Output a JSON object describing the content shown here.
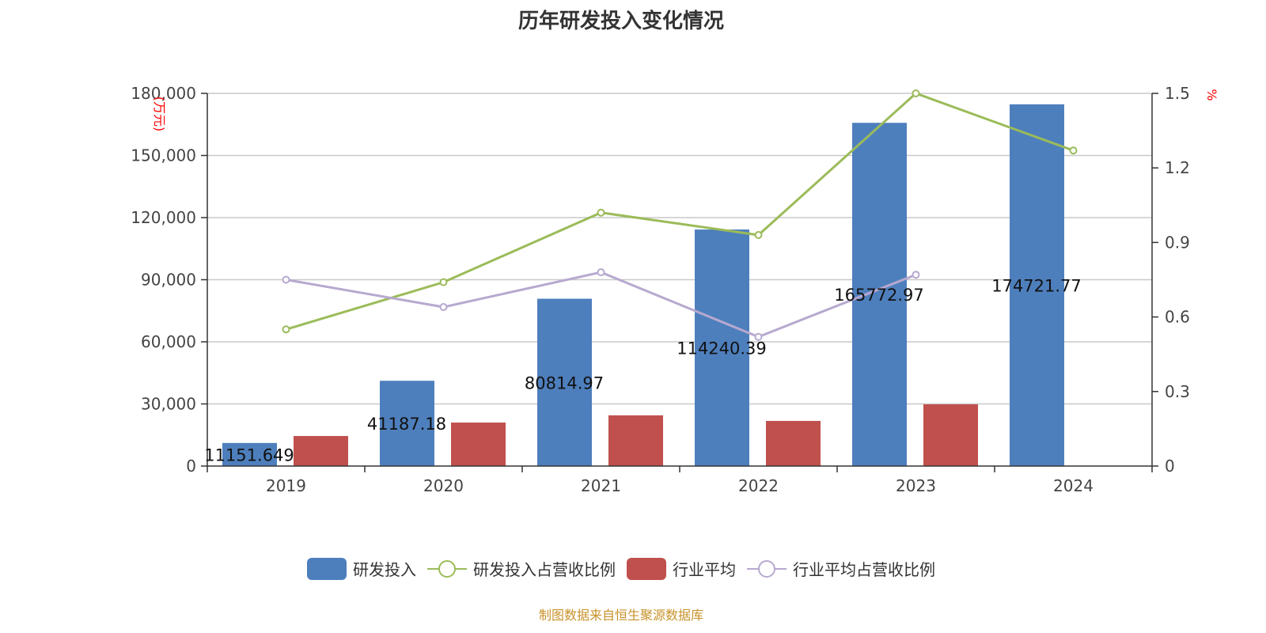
{
  "chart_data": {
    "type": "bar",
    "title": "历年研发投入变化情况",
    "categories": [
      "2019",
      "2020",
      "2021",
      "2022",
      "2023",
      "2024"
    ],
    "y_left": {
      "label": "(万元)",
      "ylim": [
        0,
        180000
      ],
      "ticks": [
        0,
        30000,
        60000,
        90000,
        120000,
        150000,
        180000
      ],
      "tick_labels": [
        "0",
        "30,000",
        "60,000",
        "90,000",
        "120,000",
        "150,000",
        "180,000"
      ]
    },
    "y_right": {
      "label": "%",
      "ylim": [
        0,
        1.5
      ],
      "ticks": [
        0,
        0.3,
        0.6,
        0.9,
        1.2,
        1.5
      ],
      "tick_labels": [
        "0",
        "0.3",
        "0.6",
        "0.9",
        "1.2",
        "1.5"
      ]
    },
    "grid": true,
    "legend_position": "bottom",
    "series": [
      {
        "name": "研发投入",
        "type": "bar",
        "axis": "left",
        "color": "#4e7fbd",
        "values": [
          11151.649,
          41187.18,
          80814.97,
          114240.39,
          165772.97,
          174721.77
        ],
        "data_labels": [
          "11151.649",
          "41187.18",
          "80814.97",
          "114240.39",
          "165772.97",
          "174721.77"
        ]
      },
      {
        "name": "研发投入占营收比例",
        "type": "line",
        "axis": "right",
        "color": "#9bbb59",
        "values": [
          0.55,
          0.74,
          1.02,
          0.93,
          1.5,
          1.27
        ]
      },
      {
        "name": "行业平均",
        "type": "bar",
        "axis": "left",
        "color": "#c0504d",
        "values": [
          14500,
          21000,
          24500,
          21800,
          29800,
          null
        ]
      },
      {
        "name": "行业平均占营收比例",
        "type": "line",
        "axis": "right",
        "color": "#b7a9cf",
        "values": [
          0.75,
          0.64,
          0.78,
          0.52,
          0.77,
          null
        ]
      }
    ]
  },
  "footer": "制图数据来自恒生聚源数据库"
}
